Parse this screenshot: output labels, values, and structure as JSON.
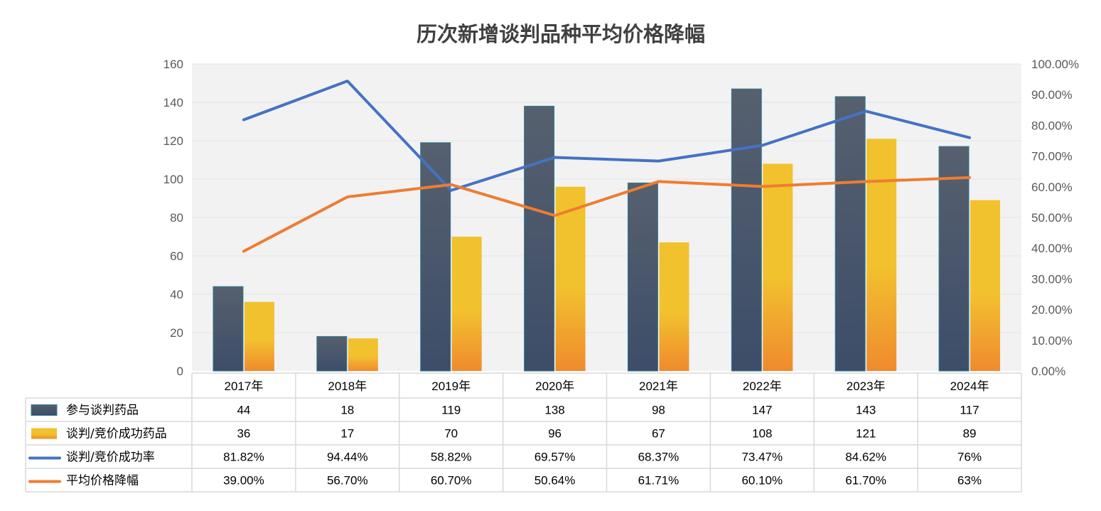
{
  "colors": {
    "bar_participating_top": "#56606e",
    "bar_participating_bottom": "#3d4d69",
    "bar_success_top": "#f2c12e",
    "bar_success_bottom": "#ef8a2e",
    "line_success_rate": "#4472c4",
    "line_price_drop": "#ed7d31",
    "plot_background": "#f2f2f2"
  },
  "chart_data": {
    "type": "bar",
    "title": "历次新增谈判品种平均价格降幅",
    "categories": [
      "2017年",
      "2018年",
      "2019年",
      "2020年",
      "2021年",
      "2022年",
      "2023年",
      "2024年"
    ],
    "ylim": [
      0,
      160
    ],
    "y_ticks": [
      "0",
      "20",
      "40",
      "60",
      "80",
      "100",
      "120",
      "140",
      "160"
    ],
    "y2lim": [
      0,
      1
    ],
    "y2_ticks": [
      "0.00%",
      "10.00%",
      "20.00%",
      "30.00%",
      "40.00%",
      "50.00%",
      "60.00%",
      "70.00%",
      "80.00%",
      "90.00%",
      "100.00%"
    ],
    "legend_position": "data-table",
    "grid": true,
    "series": [
      {
        "name": "参与谈判药品",
        "type": "bar",
        "axis": "left",
        "values": [
          44,
          18,
          119,
          138,
          98,
          147,
          143,
          117
        ],
        "labels": [
          "44",
          "18",
          "119",
          "138",
          "98",
          "147",
          "143",
          "117"
        ]
      },
      {
        "name": "谈判/竞价成功药品",
        "type": "bar",
        "axis": "left",
        "values": [
          36,
          17,
          70,
          96,
          67,
          108,
          121,
          89
        ],
        "labels": [
          "36",
          "17",
          "70",
          "96",
          "67",
          "108",
          "121",
          "89"
        ]
      },
      {
        "name": "谈判/竞价成功率",
        "type": "line",
        "axis": "right",
        "values": [
          0.8182,
          0.9444,
          0.5882,
          0.6957,
          0.6837,
          0.7347,
          0.8462,
          0.76
        ],
        "labels": [
          "81.82%",
          "94.44%",
          "58.82%",
          "69.57%",
          "68.37%",
          "73.47%",
          "84.62%",
          "76%"
        ]
      },
      {
        "name": "平均价格降幅",
        "type": "line",
        "axis": "right",
        "values": [
          0.39,
          0.567,
          0.607,
          0.5064,
          0.6171,
          0.601,
          0.617,
          0.63
        ],
        "labels": [
          "39.00%",
          "56.70%",
          "60.70%",
          "50.64%",
          "61.71%",
          "60.10%",
          "61.70%",
          "63%"
        ]
      }
    ]
  }
}
